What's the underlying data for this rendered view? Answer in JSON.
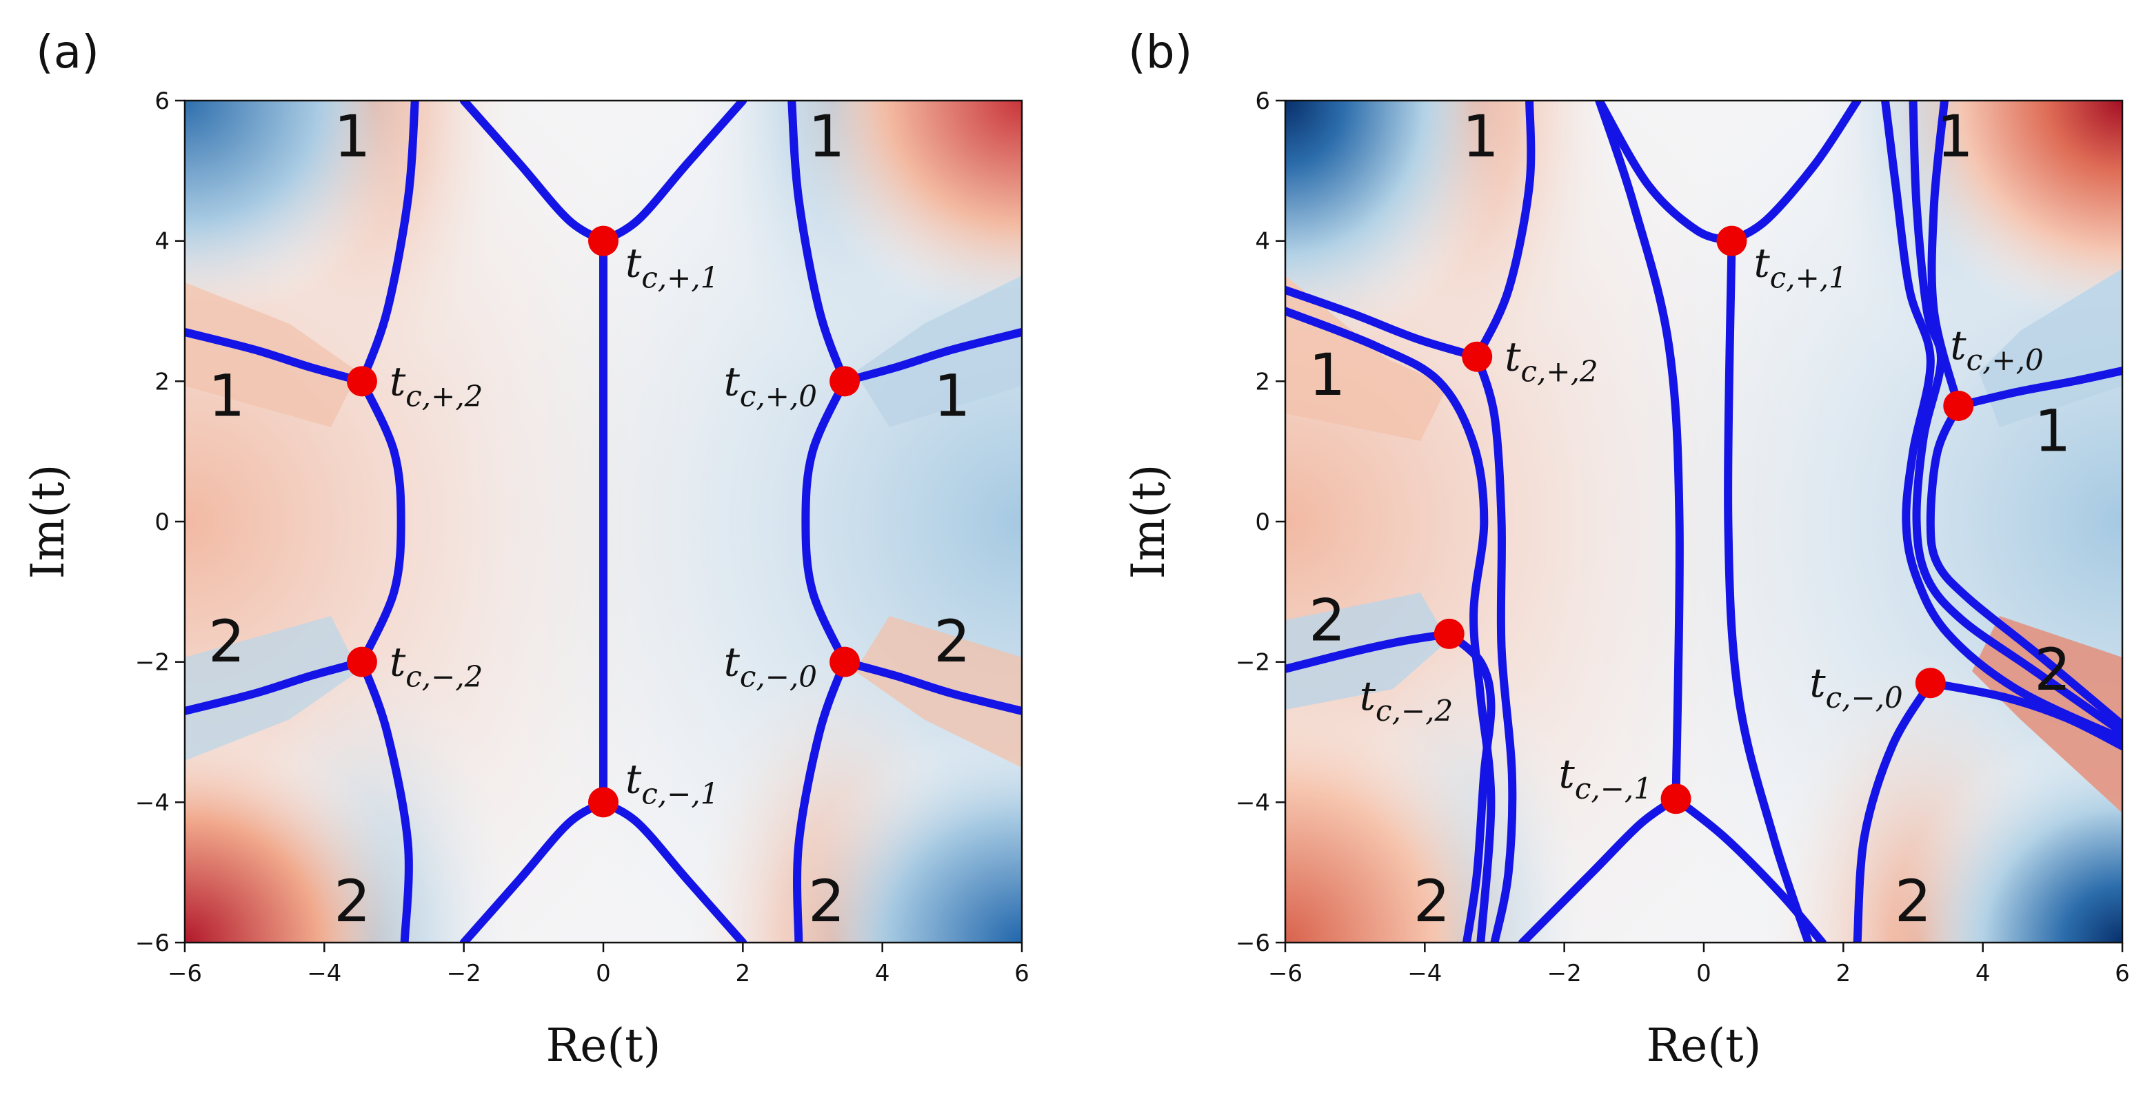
{
  "chart_data": [
    {
      "panel_label": "(a)",
      "type": "heatmap",
      "xlabel": "Re(t)",
      "ylabel": "Im(t)",
      "xlim": [
        -6,
        6
      ],
      "ylim": [
        -6,
        6
      ],
      "xticks": [
        -6,
        -4,
        -2,
        0,
        2,
        4,
        6
      ],
      "yticks": [
        -6,
        -4,
        -2,
        0,
        2,
        4,
        6
      ],
      "xtick_labels": [
        "−6",
        "−4",
        "−2",
        "0",
        "2",
        "4",
        "6"
      ],
      "ytick_labels": [
        "−6",
        "−4",
        "−2",
        "0",
        "2",
        "4",
        "6"
      ],
      "colormap": "diverging blue-white-red",
      "points": [
        {
          "label": "t_{c,+,1}",
          "x": 0.0,
          "y": 4.0
        },
        {
          "label": "t_{c,−,1}",
          "x": 0.0,
          "y": -4.0
        },
        {
          "label": "t_{c,+,2}",
          "x": -3.46,
          "y": 2.0
        },
        {
          "label": "t_{c,−,2}",
          "x": -3.46,
          "y": -2.0
        },
        {
          "label": "t_{c,+,0}",
          "x": 3.46,
          "y": 2.0
        },
        {
          "label": "t_{c,−,0}",
          "x": 3.46,
          "y": -2.0
        }
      ],
      "region_labels": [
        {
          "text": "1",
          "x": -3.6,
          "y": 5.5
        },
        {
          "text": "1",
          "x": 3.2,
          "y": 5.5
        },
        {
          "text": "1",
          "x": -5.4,
          "y": 1.8
        },
        {
          "text": "1",
          "x": 5.0,
          "y": 1.8
        },
        {
          "text": "2",
          "x": -5.4,
          "y": -1.7
        },
        {
          "text": "2",
          "x": 5.0,
          "y": -1.7
        },
        {
          "text": "2",
          "x": -3.6,
          "y": -5.4
        },
        {
          "text": "2",
          "x": 3.2,
          "y": -5.4
        }
      ],
      "curves": [
        {
          "points": [
            [
              0,
              4
            ],
            [
              0,
              -4
            ]
          ]
        },
        {
          "points": [
            [
              -2,
              6
            ],
            [
              -1.2,
              5.1
            ],
            [
              -0.5,
              4.3
            ],
            [
              0,
              4
            ]
          ]
        },
        {
          "points": [
            [
              0,
              4
            ],
            [
              0.5,
              4.3
            ],
            [
              1.2,
              5.1
            ],
            [
              2,
              6
            ]
          ]
        },
        {
          "points": [
            [
              -2,
              -6
            ],
            [
              -1.2,
              -5.1
            ],
            [
              -0.5,
              -4.3
            ],
            [
              0,
              -4
            ]
          ]
        },
        {
          "points": [
            [
              0,
              -4
            ],
            [
              0.5,
              -4.3
            ],
            [
              1.2,
              -5.1
            ],
            [
              2,
              -6
            ]
          ]
        },
        {
          "points": [
            [
              -2.7,
              6
            ],
            [
              -2.8,
              4.6
            ],
            [
              -3.1,
              3.0
            ],
            [
              -3.46,
              2.0
            ]
          ]
        },
        {
          "points": [
            [
              -3.46,
              2.0
            ],
            [
              -3.0,
              1.0
            ],
            [
              -2.9,
              0
            ],
            [
              -3.0,
              -1.0
            ],
            [
              -3.46,
              -2.0
            ]
          ]
        },
        {
          "points": [
            [
              -3.46,
              -2.0
            ],
            [
              -3.1,
              -3.0
            ],
            [
              -2.8,
              -4.6
            ],
            [
              -2.85,
              -6
            ]
          ]
        },
        {
          "points": [
            [
              -6,
              2.7
            ],
            [
              -5.0,
              2.45
            ],
            [
              -4.2,
              2.2
            ],
            [
              -3.46,
              2.0
            ]
          ]
        },
        {
          "points": [
            [
              -6,
              -2.7
            ],
            [
              -5.0,
              -2.45
            ],
            [
              -4.2,
              -2.2
            ],
            [
              -3.46,
              -2.0
            ]
          ]
        },
        {
          "points": [
            [
              2.7,
              6
            ],
            [
              2.8,
              4.6
            ],
            [
              3.1,
              3.0
            ],
            [
              3.46,
              2.0
            ]
          ]
        },
        {
          "points": [
            [
              3.46,
              2.0
            ],
            [
              3.0,
              1.0
            ],
            [
              2.9,
              0
            ],
            [
              3.0,
              -1.0
            ],
            [
              3.46,
              -2.0
            ]
          ]
        },
        {
          "points": [
            [
              3.46,
              -2.0
            ],
            [
              3.1,
              -3.0
            ],
            [
              2.8,
              -4.6
            ],
            [
              2.8,
              -6
            ]
          ]
        },
        {
          "points": [
            [
              3.46,
              2.0
            ],
            [
              4.2,
              2.2
            ],
            [
              5.0,
              2.45
            ],
            [
              6,
              2.7
            ]
          ]
        },
        {
          "points": [
            [
              3.46,
              -2.0
            ],
            [
              4.2,
              -2.2
            ],
            [
              5.0,
              -2.45
            ],
            [
              6,
              -2.7
            ]
          ]
        }
      ]
    },
    {
      "panel_label": "(b)",
      "type": "heatmap",
      "xlabel": "Re(t)",
      "ylabel": "Im(t)",
      "xlim": [
        -6,
        6
      ],
      "ylim": [
        -6,
        6
      ],
      "xticks": [
        -6,
        -4,
        -2,
        0,
        2,
        4,
        6
      ],
      "yticks": [
        -6,
        -4,
        -2,
        0,
        2,
        4,
        6
      ],
      "xtick_labels": [
        "−6",
        "−4",
        "−2",
        "0",
        "2",
        "4",
        "6"
      ],
      "ytick_labels": [
        "−6",
        "−4",
        "−2",
        "0",
        "2",
        "4",
        "6"
      ],
      "colormap": "diverging blue-white-red",
      "points": [
        {
          "label": "t_{c,+,1}",
          "x": 0.4,
          "y": 4.0
        },
        {
          "label": "t_{c,−,1}",
          "x": -0.4,
          "y": -3.95
        },
        {
          "label": "t_{c,+,2}",
          "x": -3.25,
          "y": 2.35
        },
        {
          "label": "t_{c,−,2}",
          "x": -3.65,
          "y": -1.6
        },
        {
          "label": "t_{c,+,0}",
          "x": 3.65,
          "y": 1.65
        },
        {
          "label": "t_{c,−,0}",
          "x": 3.25,
          "y": -2.3
        }
      ],
      "region_labels": [
        {
          "text": "1",
          "x": -3.2,
          "y": 5.5
        },
        {
          "text": "1",
          "x": 3.6,
          "y": 5.5
        },
        {
          "text": "1",
          "x": -5.4,
          "y": 2.1
        },
        {
          "text": "1",
          "x": 5.0,
          "y": 1.3
        },
        {
          "text": "2",
          "x": -5.4,
          "y": -1.4
        },
        {
          "text": "2",
          "x": 5.0,
          "y": -2.1
        },
        {
          "text": "2",
          "x": -3.9,
          "y": -5.4
        },
        {
          "text": "2",
          "x": 3.0,
          "y": -5.4
        }
      ],
      "curves": [
        {
          "points": [
            [
              0.4,
              4.0
            ],
            [
              0.35,
              0
            ],
            [
              0.5,
              -2.5
            ],
            [
              1.0,
              -4.5
            ],
            [
              1.5,
              -6
            ]
          ]
        },
        {
          "points": [
            [
              -0.4,
              -3.95
            ],
            [
              -0.35,
              0
            ],
            [
              -0.5,
              2.5
            ],
            [
              -1.0,
              4.5
            ],
            [
              -1.5,
              6
            ]
          ]
        },
        {
          "points": [
            [
              -1.5,
              6
            ],
            [
              -0.8,
              4.8
            ],
            [
              -0.1,
              4.15
            ],
            [
              0.4,
              4.0
            ]
          ]
        },
        {
          "points": [
            [
              0.4,
              4.0
            ],
            [
              0.9,
              4.3
            ],
            [
              1.6,
              5.1
            ],
            [
              2.2,
              6
            ]
          ]
        },
        {
          "points": [
            [
              -2.6,
              -6
            ],
            [
              -1.6,
              -5.0
            ],
            [
              -0.9,
              -4.3
            ],
            [
              -0.4,
              -3.95
            ]
          ]
        },
        {
          "points": [
            [
              -0.4,
              -3.95
            ],
            [
              0.3,
              -4.5
            ],
            [
              1.1,
              -5.3
            ],
            [
              1.7,
              -6
            ]
          ]
        },
        {
          "points": [
            [
              -2.5,
              6
            ],
            [
              -2.5,
              4.8
            ],
            [
              -2.8,
              3.3
            ],
            [
              -3.25,
              2.35
            ]
          ]
        },
        {
          "points": [
            [
              -6,
              3.3
            ],
            [
              -5.0,
              2.95
            ],
            [
              -4.1,
              2.6
            ],
            [
              -3.25,
              2.35
            ]
          ]
        },
        {
          "points": [
            [
              -3.25,
              2.35
            ],
            [
              -3.0,
              1.5
            ],
            [
              -2.9,
              0
            ],
            [
              -2.9,
              -1.8
            ],
            [
              -2.75,
              -3.6
            ],
            [
              -2.8,
              -5
            ],
            [
              -3.0,
              -6
            ]
          ]
        },
        {
          "points": [
            [
              -6,
              3.0
            ],
            [
              -4.7,
              2.5
            ],
            [
              -3.8,
              2.0
            ],
            [
              -3.3,
              1.1
            ],
            [
              -3.15,
              0
            ],
            [
              -3.3,
              -1.3
            ],
            [
              -3.2,
              -2.5
            ],
            [
              -3.05,
              -4
            ],
            [
              -3.2,
              -6
            ]
          ]
        },
        {
          "points": [
            [
              -6,
              -2.1
            ],
            [
              -5.0,
              -1.85
            ],
            [
              -4.3,
              -1.7
            ],
            [
              -3.65,
              -1.6
            ]
          ]
        },
        {
          "points": [
            [
              -3.65,
              -1.6
            ],
            [
              -3.2,
              -2.0
            ],
            [
              -3.05,
              -2.6
            ],
            [
              -3.15,
              -3.6
            ],
            [
              -3.25,
              -5
            ],
            [
              -3.4,
              -6
            ]
          ]
        },
        {
          "points": [
            [
              2.6,
              6
            ],
            [
              2.75,
              4.8
            ],
            [
              2.95,
              3.3
            ],
            [
              3.25,
              2.3
            ],
            [
              3.0,
              1.0
            ],
            [
              2.9,
              0
            ],
            [
              3.05,
              -0.8
            ],
            [
              3.5,
              -1.6
            ],
            [
              4.5,
              -2.4
            ],
            [
              6,
              -3.1
            ]
          ]
        },
        {
          "points": [
            [
              3.0,
              6
            ],
            [
              3.05,
              4.5
            ],
            [
              3.2,
              3.0
            ],
            [
              3.4,
              2.3
            ],
            [
              3.15,
              1.2
            ],
            [
              3.05,
              0
            ],
            [
              3.2,
              -0.8
            ],
            [
              3.7,
              -1.4
            ],
            [
              4.7,
              -2.1
            ],
            [
              6,
              -3.0
            ]
          ]
        },
        {
          "points": [
            [
              3.45,
              6
            ],
            [
              3.3,
              4.5
            ],
            [
              3.3,
              3.0
            ],
            [
              3.65,
              1.65
            ]
          ]
        },
        {
          "points": [
            [
              3.65,
              1.65
            ],
            [
              4.5,
              1.85
            ],
            [
              5.3,
              2.0
            ],
            [
              6,
              2.15
            ]
          ]
        },
        {
          "points": [
            [
              3.65,
              1.65
            ],
            [
              3.35,
              1.0
            ],
            [
              3.25,
              0
            ],
            [
              3.35,
              -0.6
            ],
            [
              3.8,
              -1.1
            ],
            [
              4.8,
              -1.9
            ],
            [
              6,
              -2.9
            ]
          ]
        },
        {
          "points": [
            [
              3.25,
              -2.3
            ],
            [
              4.3,
              -2.5
            ],
            [
              5.2,
              -2.8
            ],
            [
              6,
              -3.2
            ]
          ]
        },
        {
          "points": [
            [
              3.25,
              -2.3
            ],
            [
              2.7,
              -3.2
            ],
            [
              2.3,
              -4.5
            ],
            [
              2.2,
              -6
            ]
          ]
        }
      ]
    }
  ]
}
